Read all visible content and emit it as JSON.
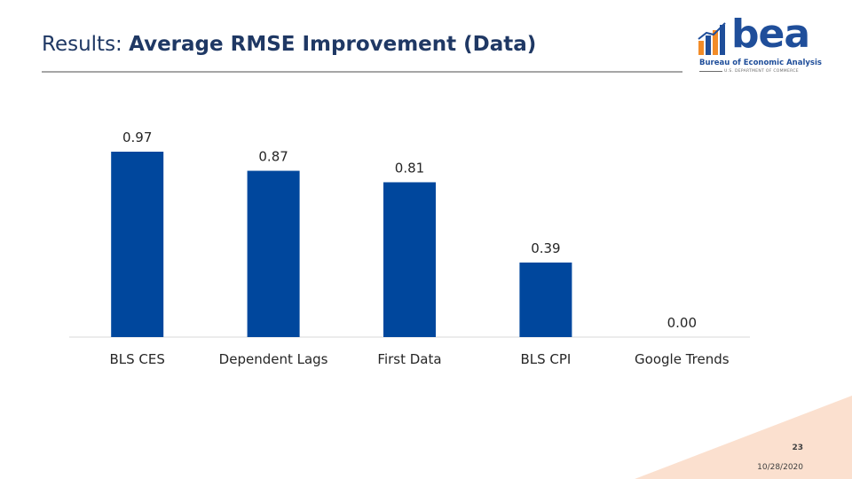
{
  "header": {
    "title_prefix": "Results: ",
    "title_main": "Average RMSE Improvement (Data)"
  },
  "logo": {
    "wordmark": "bea",
    "line1": "Bureau of Economic Analysis",
    "line2": "U.S. DEPARTMENT OF COMMERCE"
  },
  "chart_data": {
    "type": "bar",
    "categories": [
      "BLS CES",
      "Dependent Lags",
      "First Data",
      "BLS CPI",
      "Google Trends"
    ],
    "values": [
      0.97,
      0.87,
      0.81,
      0.39,
      0.0
    ],
    "data_labels": [
      "0.97",
      "0.87",
      "0.81",
      "0.39",
      "0.00"
    ],
    "title": "",
    "xlabel": "",
    "ylabel": "",
    "ylim": [
      0,
      1.0
    ],
    "bar_color": "#00479D",
    "grid": false,
    "legend": "none"
  },
  "footer": {
    "page_number": "23",
    "date": "10/28/2020"
  },
  "colors": {
    "accent_corner": "#FBE0CF"
  }
}
